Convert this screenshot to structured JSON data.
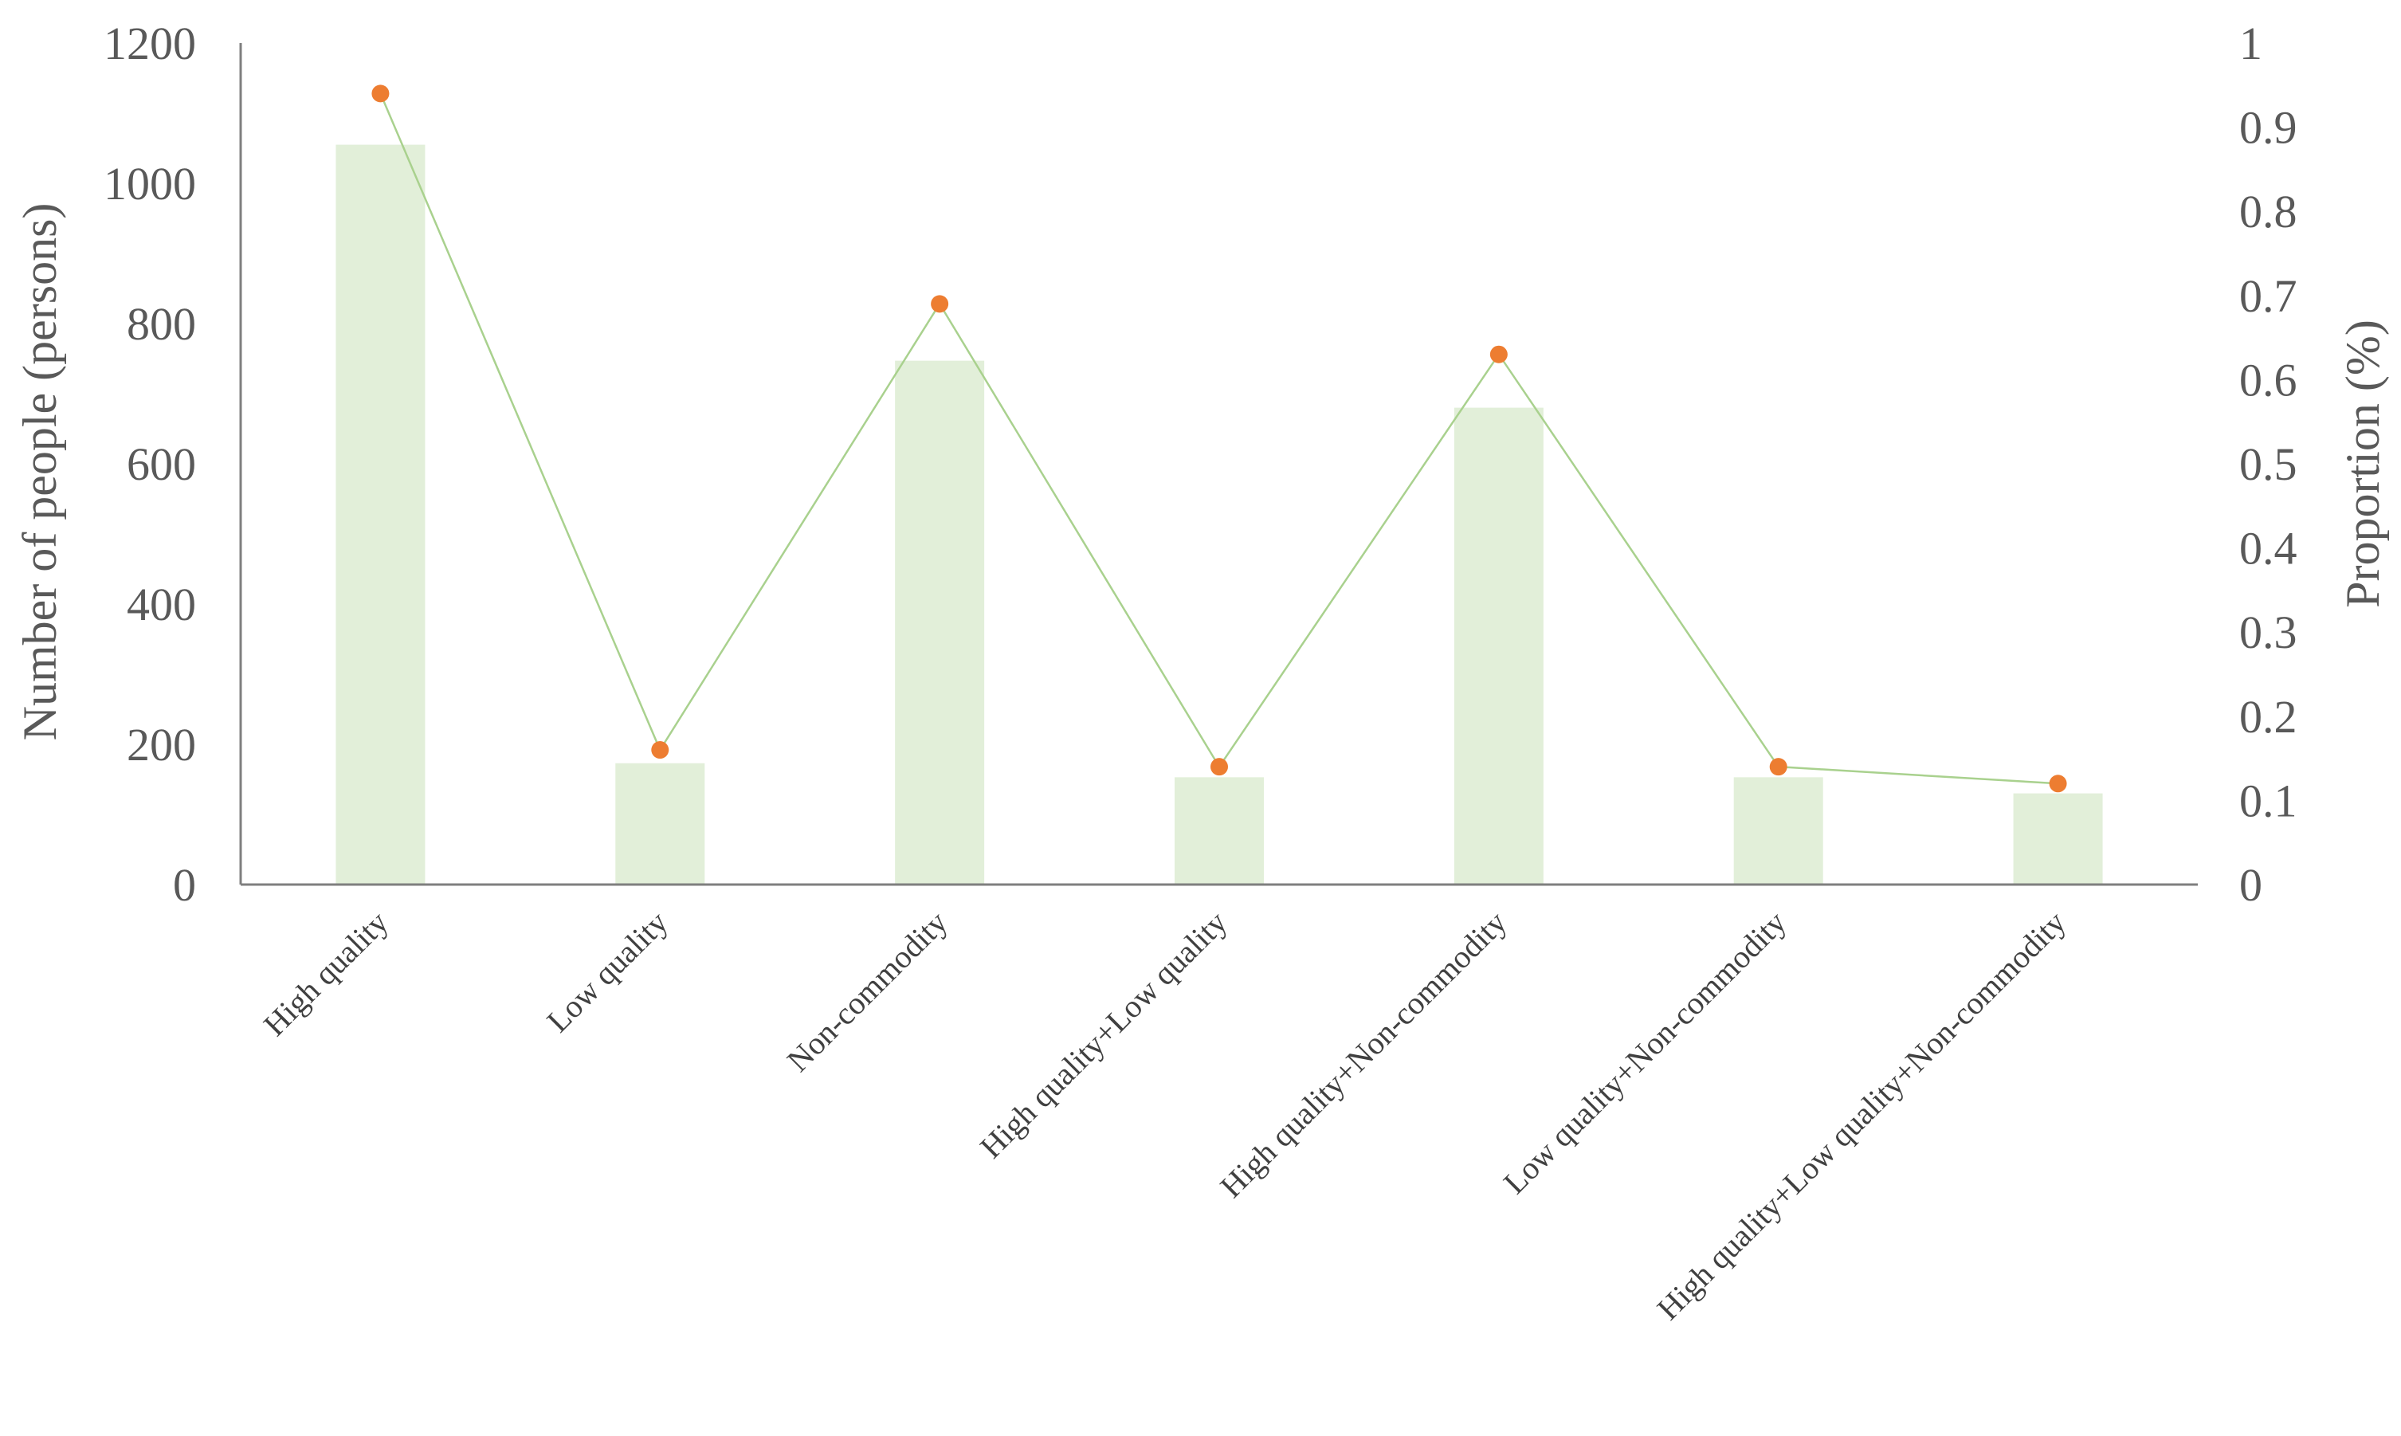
{
  "chart_data": {
    "type": "bar",
    "title": "",
    "categories": [
      "High quality",
      "Low quality",
      "Non-commodity",
      "High quality+Low quality",
      "High quality+Non-commodity",
      "Low quality+Non-commodity",
      "High quality+Low quality+Non-commodity"
    ],
    "series": [
      {
        "type": "bar",
        "axis": "left",
        "values": [
          1055,
          173,
          747,
          153,
          680,
          153,
          130
        ]
      },
      {
        "type": "line",
        "axis": "right",
        "values": [
          0.94,
          0.16,
          0.69,
          0.14,
          0.63,
          0.14,
          0.12
        ]
      }
    ],
    "ylabel": "Number of people (persons)",
    "y2label": "Proportion (%)",
    "ylim": [
      0,
      1200
    ],
    "y2lim": [
      0,
      1
    ],
    "yticks": [
      "0",
      "200",
      "400",
      "600",
      "800",
      "1000",
      "1200"
    ],
    "y2ticks": [
      "0",
      "0.1",
      "0.2",
      "0.3",
      "0.4",
      "0.5",
      "0.6",
      "0.7",
      "0.8",
      "0.9",
      "1"
    ],
    "grid": false,
    "legend": "none",
    "colors": {
      "bar": "#e2efd9",
      "line": "#a9d18e",
      "marker": "#ed7d31",
      "axis": "#7f7f7f"
    }
  }
}
